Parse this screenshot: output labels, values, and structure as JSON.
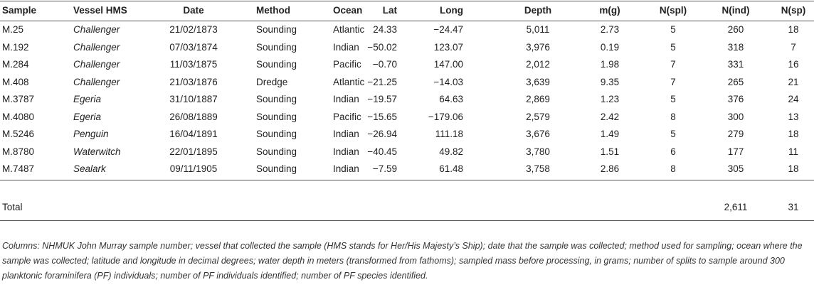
{
  "table": {
    "header": [
      "Sample",
      "Vessel HMS",
      "Date",
      "Method",
      "Ocean",
      "Lat",
      "Long",
      "Depth",
      "m(g)",
      "N(spl)",
      "N(ind)",
      "N(sp)"
    ],
    "rows": [
      [
        "M.25",
        "Challenger",
        "21/02/1873",
        "Sounding",
        "Atlantic",
        "24.33",
        "−24.47",
        "5,011",
        "2.73",
        "5",
        "260",
        "18"
      ],
      [
        "M.192",
        "Challenger",
        "07/03/1874",
        "Sounding",
        "Indian",
        "−50.02",
        "123.07",
        "3,976",
        "0.19",
        "5",
        "318",
        "7"
      ],
      [
        "M.284",
        "Challenger",
        "11/03/1875",
        "Sounding",
        "Pacific",
        "−0.70",
        "147.00",
        "2,012",
        "1.98",
        "7",
        "331",
        "16"
      ],
      [
        "M.408",
        "Challenger",
        "21/03/1876",
        "Dredge",
        "Atlantic",
        "−21.25",
        "−14.03",
        "3,639",
        "9.35",
        "7",
        "265",
        "21"
      ],
      [
        "M.3787",
        "Egeria",
        "31/10/1887",
        "Sounding",
        "Indian",
        "−19.57",
        "64.63",
        "2,869",
        "1.23",
        "5",
        "376",
        "24"
      ],
      [
        "M.4080",
        "Egeria",
        "26/08/1889",
        "Sounding",
        "Pacific",
        "−15.65",
        "−179.06",
        "2,579",
        "2.42",
        "8",
        "300",
        "13"
      ],
      [
        "M.5246",
        "Penguin",
        "16/04/1891",
        "Sounding",
        "Indian",
        "−26.94",
        "111.18",
        "3,676",
        "1.49",
        "5",
        "279",
        "18"
      ],
      [
        "M.8780",
        "Waterwitch",
        "22/01/1895",
        "Sounding",
        "Indian",
        "−40.45",
        "49.82",
        "3,780",
        "1.51",
        "6",
        "177",
        "11"
      ],
      [
        "M.7487",
        "Sealark",
        "09/11/1905",
        "Sounding",
        "Indian",
        "−7.59",
        "61.48",
        "3,758",
        "2.86",
        "8",
        "305",
        "18"
      ]
    ],
    "total": {
      "label": "Total",
      "n_ind": "2,611",
      "n_sp": "31"
    }
  },
  "caption": "Columns: NHMUK John Murray sample number; vessel that collected the sample (HMS stands for Her/His Majesty’s Ship); date that the sample was collected; method used for sampling; ocean where the sample was collected; latitude and longitude in decimal degrees; water depth in meters (transformed from fathoms); sampled mass before processing, in grams; number of splits to sample around 300 planktonic foraminifera (PF) individuals; number of PF individuals identified; number of PF species identified."
}
